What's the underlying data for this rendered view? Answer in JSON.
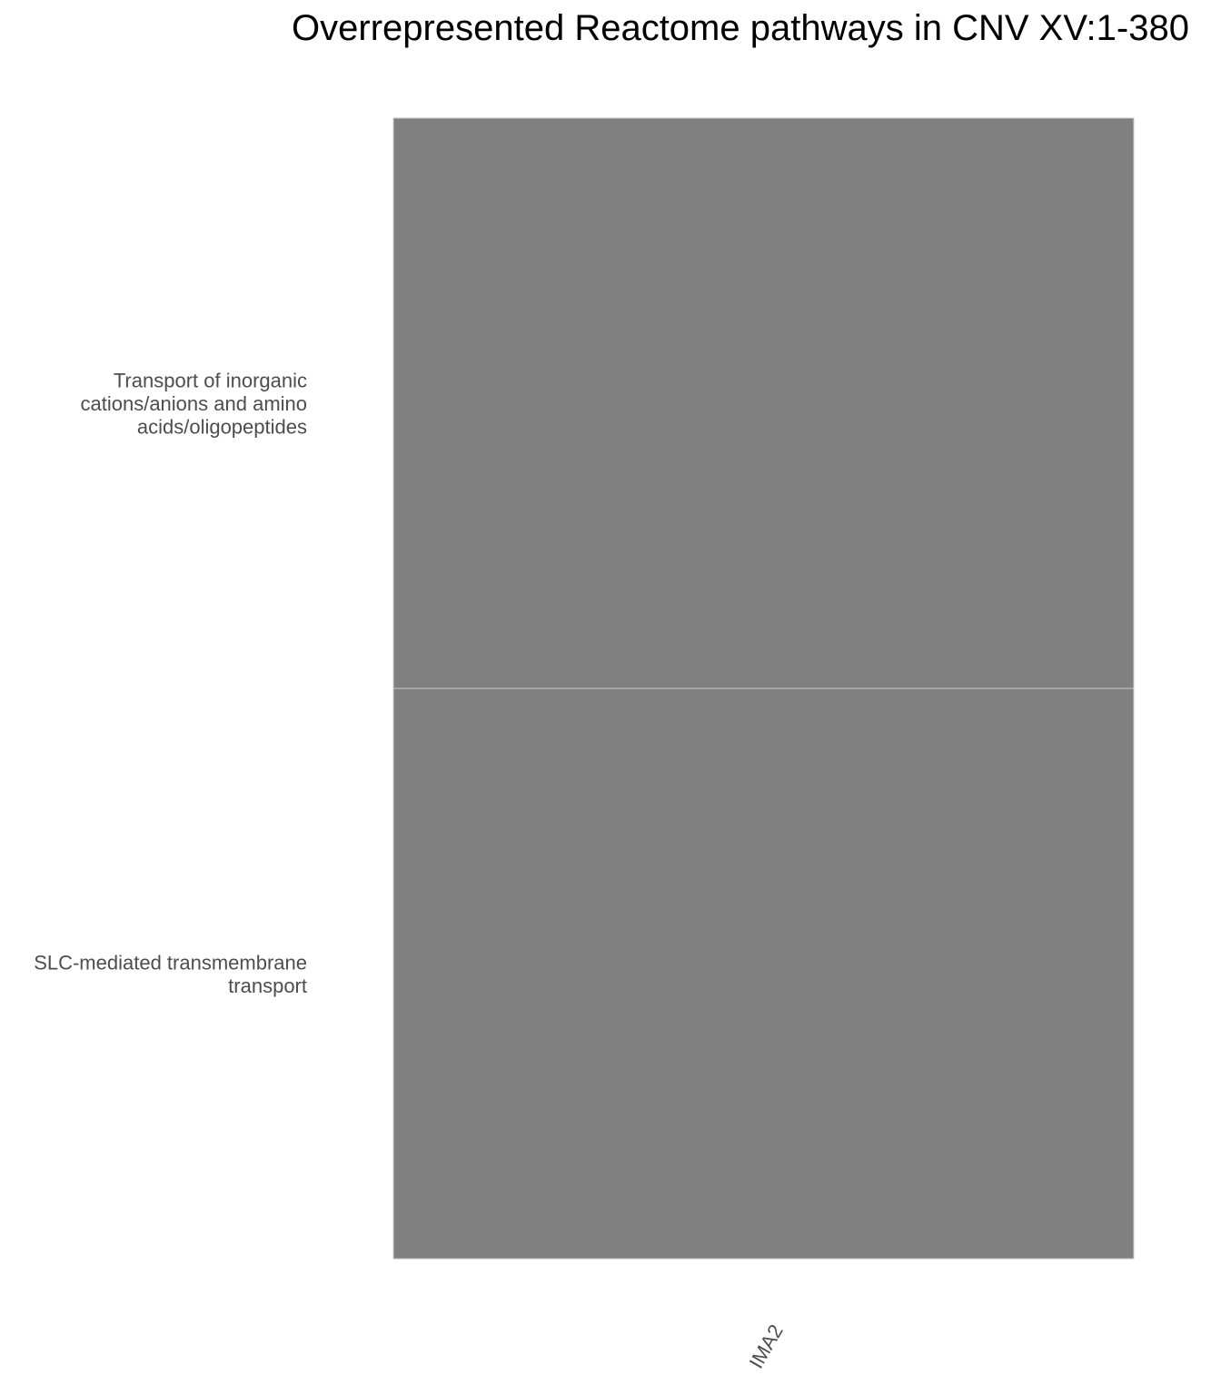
{
  "chart_data": {
    "type": "heatmap",
    "title": "Overrepresented Reactome pathways in CNV XV:1-380",
    "xlabel": "",
    "ylabel": "",
    "x_categories": [
      "IMA2"
    ],
    "y_categories": [
      "Transport of inorganic cations/anions and amino acids/oligopeptides",
      "SLC-mediated transmembrane transport"
    ],
    "y_category_lines": [
      [
        "Transport of inorganic",
        "cations/anions and amino",
        "acids/oligopeptides"
      ],
      [
        "SLC-mediated transmembrane",
        "transport"
      ]
    ],
    "cells": [
      {
        "x": "IMA2",
        "y": "Transport of inorganic cations/anions and amino acids/oligopeptides",
        "color": "#808080"
      },
      {
        "x": "IMA2",
        "y": "SLC-mediated transmembrane transport",
        "color": "#808080"
      }
    ],
    "legend": "none",
    "grid": false
  },
  "colors": {
    "cell_fill": "#808080",
    "cell_border": "#cccccc",
    "tick_text": "#4d4d4d",
    "title_text": "#000000",
    "background": "#ffffff"
  }
}
